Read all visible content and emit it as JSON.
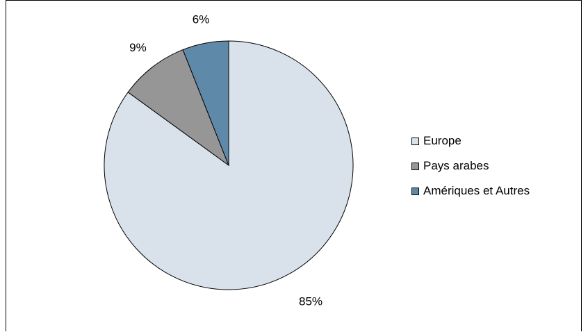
{
  "chart_data": {
    "type": "pie",
    "categories": [
      "Europe",
      "Pays arabes",
      "Amériques et Autres"
    ],
    "values": [
      85,
      9,
      6
    ],
    "labels": [
      "85%",
      "9%",
      "6%"
    ],
    "colors": [
      "#d9e2ea",
      "#969696",
      "#5f89a8"
    ],
    "title": "",
    "legend_position": "right"
  }
}
